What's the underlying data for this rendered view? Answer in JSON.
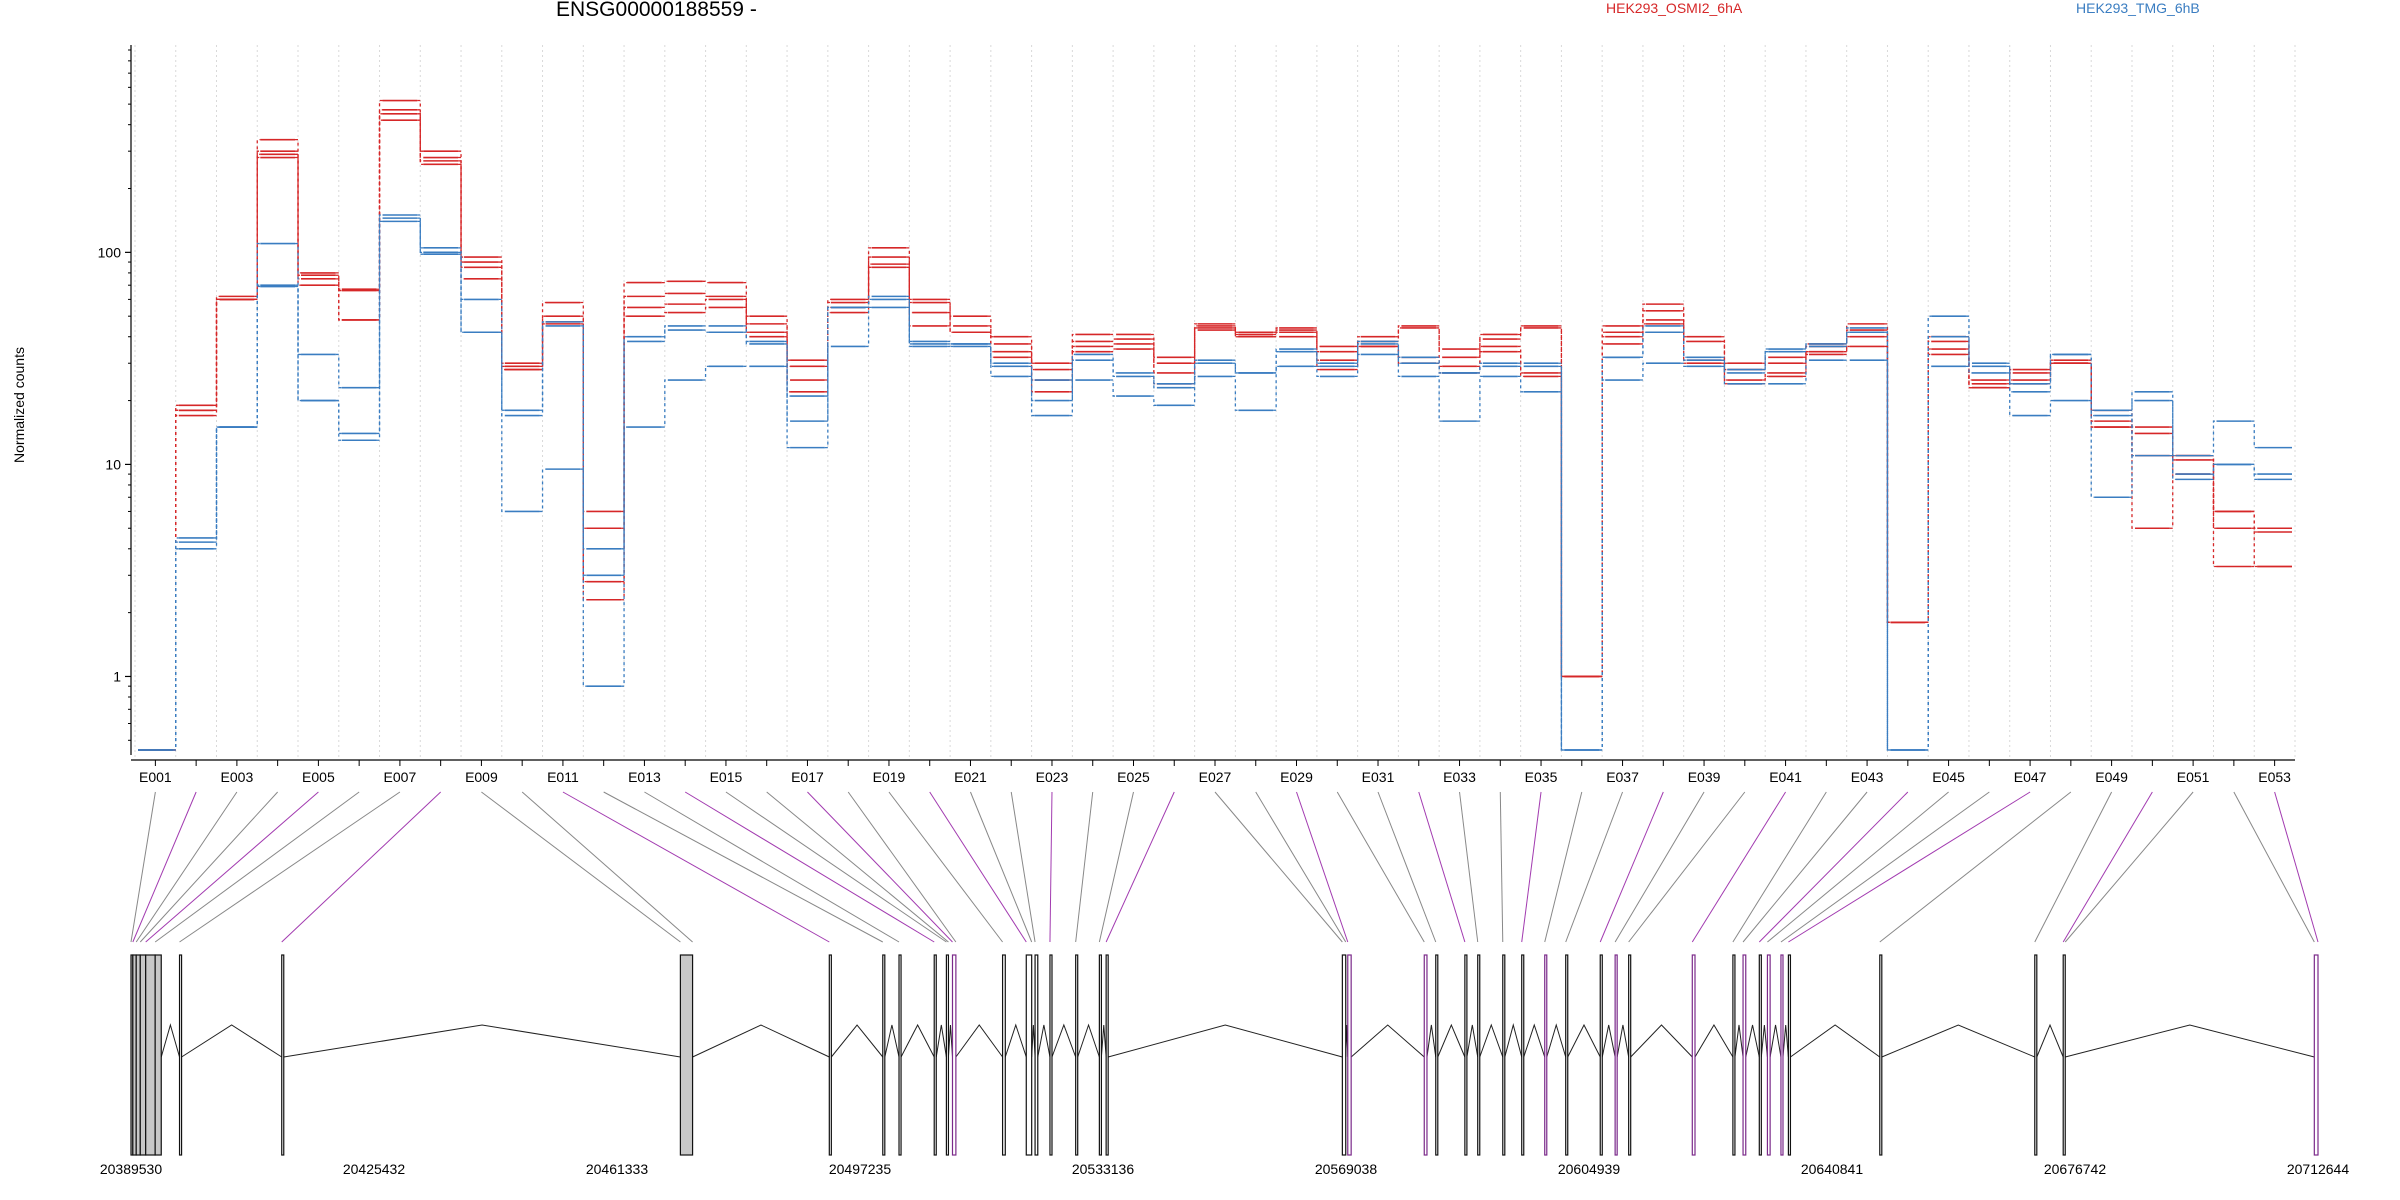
{
  "chart_data": {
    "type": "line",
    "title": "ENSG00000188559 -",
    "ylabel": "Normalized counts",
    "xlabel": "",
    "yscale": "log",
    "ylim": [
      0.45,
      900
    ],
    "yticks": [
      1,
      10,
      100
    ],
    "ytick_labels": [
      "1",
      "10",
      "100"
    ],
    "grid": "vertical dotted lines at exon boundaries",
    "legend_position": "top",
    "exon_ticks": [
      "E001",
      "E003",
      "E005",
      "E007",
      "E009",
      "E011",
      "E013",
      "E015",
      "E017",
      "E019",
      "E021",
      "E023",
      "E025",
      "E027",
      "E029",
      "E031",
      "E033",
      "E035",
      "E037",
      "E039",
      "E041",
      "E043",
      "E045",
      "E047",
      "E049",
      "E051",
      "E053"
    ],
    "exons": [
      "E001",
      "E002",
      "E003",
      "E004",
      "E005",
      "E006",
      "E007",
      "E008",
      "E009",
      "E010",
      "E011",
      "E012",
      "E013",
      "E014",
      "E015",
      "E016",
      "E017",
      "E018",
      "E019",
      "E020",
      "E021",
      "E022",
      "E023",
      "E024",
      "E025",
      "E026",
      "E027",
      "E028",
      "E029",
      "E030",
      "E031",
      "E032",
      "E033",
      "E034",
      "E035",
      "E036",
      "E037",
      "E038",
      "E039",
      "E040",
      "E041",
      "E042",
      "E043",
      "E044",
      "E045",
      "E046",
      "E047",
      "E048",
      "E049",
      "E050",
      "E051",
      "E052",
      "E053"
    ],
    "groups": [
      {
        "name": "HEK293_OSMI2_6hA",
        "color": "#d62728"
      },
      {
        "name": "HEK293_TMG_6hB",
        "color": "#3a7dc1"
      }
    ],
    "series": [
      {
        "group": 0,
        "values": [
          0.45,
          19,
          62,
          340,
          80,
          67,
          520,
          300,
          95,
          30,
          58,
          6,
          72,
          73,
          72,
          50,
          31,
          60,
          105,
          60,
          50,
          40,
          30,
          41,
          41,
          32,
          46,
          42,
          44,
          36,
          40,
          45,
          35,
          41,
          45,
          1.0,
          45,
          57,
          40,
          30,
          32,
          37,
          46,
          1.8,
          40,
          25,
          28,
          31,
          18,
          15,
          11,
          6,
          5
        ]
      },
      {
        "group": 0,
        "values": [
          0.45,
          18,
          60,
          300,
          78,
          66,
          470,
          280,
          90,
          29,
          50,
          5,
          62,
          64,
          62,
          46,
          29,
          58,
          95,
          58,
          45,
          37,
          28,
          38,
          39,
          30,
          45,
          41,
          43,
          34,
          38,
          44,
          32,
          39,
          44,
          1.0,
          42,
          53,
          38,
          28,
          30,
          36,
          43,
          1.8,
          38,
          24,
          27,
          30,
          16,
          14,
          10.5,
          5,
          3.3
        ]
      },
      {
        "group": 0,
        "values": [
          0.45,
          18,
          60,
          290,
          75,
          48,
          450,
          270,
          85,
          28,
          47,
          2.8,
          55,
          57,
          60,
          42,
          25,
          55,
          88,
          52,
          42,
          34,
          25,
          36,
          37,
          27,
          44,
          40,
          42,
          31,
          36,
          32,
          29,
          36,
          27,
          1.0,
          40,
          48,
          31,
          25,
          27,
          34,
          40,
          1.8,
          35,
          23,
          25,
          30,
          15,
          11,
          9,
          3.3,
          3.3
        ]
      },
      {
        "group": 0,
        "values": [
          0.45,
          17,
          60,
          280,
          70,
          48,
          420,
          260,
          75,
          28,
          46,
          2.3,
          50,
          52,
          55,
          40,
          22,
          52,
          85,
          45,
          42,
          32,
          22,
          34,
          35,
          24,
          43,
          40,
          40,
          28,
          36,
          30,
          27,
          34,
          26,
          1.0,
          37,
          46,
          30,
          24,
          26,
          33,
          36,
          1.8,
          33,
          23,
          24,
          30,
          15,
          5,
          11,
          6,
          4.8
        ]
      },
      {
        "group": 1,
        "values": [
          0.45,
          4.5,
          15,
          110,
          33,
          23,
          150,
          105,
          60,
          18,
          47,
          4.0,
          40,
          45,
          45,
          38,
          21,
          55,
          62,
          38,
          37,
          30,
          25,
          33,
          27,
          24,
          30,
          27,
          35,
          30,
          38,
          32,
          27,
          30,
          30,
          0.45,
          32,
          45,
          32,
          28,
          35,
          37,
          44,
          0.45,
          50,
          30,
          24,
          33,
          18,
          22,
          11,
          16,
          12
        ]
      },
      {
        "group": 1,
        "values": [
          0.45,
          4.3,
          15,
          70,
          20,
          14,
          145,
          100,
          42,
          17,
          45,
          3.0,
          38,
          43,
          42,
          37,
          16,
          55,
          60,
          37,
          36,
          29,
          20,
          31,
          26,
          23,
          31,
          27,
          34,
          29,
          37,
          30,
          27,
          29,
          29,
          0.45,
          32,
          42,
          31,
          27,
          34,
          36,
          42,
          0.45,
          40,
          29,
          22,
          33,
          17,
          11,
          9,
          10,
          9
        ]
      },
      {
        "group": 1,
        "values": [
          0.45,
          4.0,
          15,
          69,
          20,
          13,
          140,
          98,
          42,
          6,
          9.5,
          0.9,
          15,
          25,
          29,
          29,
          12,
          36,
          55,
          36,
          37,
          26,
          17,
          25,
          21,
          19,
          26,
          18,
          29,
          26,
          33,
          26,
          16,
          26,
          22,
          0.45,
          25,
          30,
          29,
          24,
          24,
          31,
          31,
          0.45,
          29,
          27,
          17,
          20,
          7,
          20,
          8.5,
          10,
          8.5
        ]
      }
    ],
    "genome_ticks": [
      "20389530",
      "20425432",
      "20461333",
      "20497235",
      "20533136",
      "20569038",
      "20604939",
      "20640841",
      "20676742",
      "20712644"
    ],
    "genome_range": [
      20389530,
      20712644
    ],
    "gene_structure_exons": [
      {
        "start": 20389530,
        "end": 20389800,
        "shaded": true
      },
      {
        "start": 20389800,
        "end": 20390300,
        "shaded": true
      },
      {
        "start": 20390300,
        "end": 20390900,
        "shaded": true
      },
      {
        "start": 20390900,
        "end": 20391700,
        "shaded": true
      },
      {
        "start": 20391700,
        "end": 20393100,
        "shaded": true
      },
      {
        "start": 20393100,
        "end": 20394000,
        "shaded": true
      },
      {
        "start": 20396700,
        "end": 20397000,
        "shaded": false
      },
      {
        "start": 20411800,
        "end": 20412100,
        "shaded": false
      },
      {
        "start": 20470700,
        "end": 20472500,
        "shaded": true
      },
      {
        "start": 20492700,
        "end": 20493000,
        "shaded": false
      },
      {
        "start": 20500600,
        "end": 20500900,
        "shaded": false
      },
      {
        "start": 20503000,
        "end": 20503300,
        "shaded": false
      },
      {
        "start": 20508200,
        "end": 20508500,
        "shaded": false
      },
      {
        "start": 20510000,
        "end": 20510300,
        "shaded": false
      },
      {
        "start": 20510900,
        "end": 20511400,
        "shaded": false,
        "purple": true
      },
      {
        "start": 20518300,
        "end": 20518700,
        "shaded": false
      },
      {
        "start": 20521800,
        "end": 20522600,
        "shaded": false
      },
      {
        "start": 20523100,
        "end": 20523500,
        "shaded": false
      },
      {
        "start": 20525300,
        "end": 20525600,
        "shaded": false
      },
      {
        "start": 20529100,
        "end": 20529400,
        "shaded": false
      },
      {
        "start": 20532600,
        "end": 20532900,
        "shaded": false
      },
      {
        "start": 20533600,
        "end": 20533900,
        "shaded": false
      },
      {
        "start": 20568500,
        "end": 20569000,
        "shaded": false
      },
      {
        "start": 20569300,
        "end": 20569800,
        "shaded": false,
        "purple": true
      },
      {
        "start": 20580600,
        "end": 20581000,
        "shaded": false,
        "purple": true
      },
      {
        "start": 20582300,
        "end": 20582600,
        "shaded": false
      },
      {
        "start": 20586600,
        "end": 20586900,
        "shaded": false
      },
      {
        "start": 20588500,
        "end": 20588800,
        "shaded": false
      },
      {
        "start": 20592200,
        "end": 20592500,
        "shaded": false
      },
      {
        "start": 20595000,
        "end": 20595300,
        "shaded": false
      },
      {
        "start": 20598400,
        "end": 20598700,
        "shaded": false,
        "purple": true
      },
      {
        "start": 20601500,
        "end": 20601800,
        "shaded": false
      },
      {
        "start": 20606600,
        "end": 20606900,
        "shaded": false
      },
      {
        "start": 20608800,
        "end": 20609100,
        "shaded": false,
        "purple": true
      },
      {
        "start": 20610800,
        "end": 20611100,
        "shaded": false
      },
      {
        "start": 20620200,
        "end": 20620600,
        "shaded": false,
        "purple": true
      },
      {
        "start": 20626200,
        "end": 20626500,
        "shaded": false
      },
      {
        "start": 20627700,
        "end": 20628100,
        "shaded": false,
        "purple": true
      },
      {
        "start": 20630100,
        "end": 20630400,
        "shaded": false
      },
      {
        "start": 20631300,
        "end": 20631700,
        "shaded": false,
        "purple": true
      },
      {
        "start": 20633300,
        "end": 20633600,
        "shaded": false,
        "purple": true
      },
      {
        "start": 20634400,
        "end": 20634700,
        "shaded": false
      },
      {
        "start": 20647900,
        "end": 20648200,
        "shaded": false
      },
      {
        "start": 20670800,
        "end": 20671100,
        "shaded": false
      },
      {
        "start": 20675000,
        "end": 20675300,
        "shaded": false
      },
      {
        "start": 20712100,
        "end": 20712644,
        "shaded": false,
        "purple": true
      }
    ],
    "exon_anchor_positions": [
      20389530,
      20389800,
      20390300,
      20390900,
      20391700,
      20393100,
      20396700,
      20411800,
      20470700,
      20472500,
      20492700,
      20500600,
      20503000,
      20508200,
      20510000,
      20510300,
      20510900,
      20511400,
      20518300,
      20521800,
      20522600,
      20523100,
      20525300,
      20529100,
      20532600,
      20533600,
      20568500,
      20569000,
      20569300,
      20580600,
      20582300,
      20586600,
      20588500,
      20592200,
      20595000,
      20598400,
      20601500,
      20606600,
      20608800,
      20610800,
      20620200,
      20626200,
      20627700,
      20630100,
      20631300,
      20633300,
      20634400,
      20647900,
      20670800,
      20675000,
      20675300,
      20712100,
      20712644
    ]
  }
}
